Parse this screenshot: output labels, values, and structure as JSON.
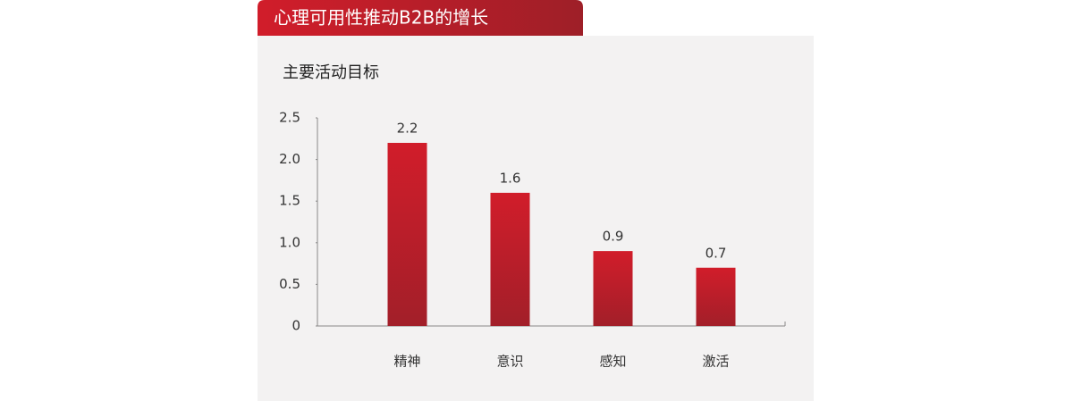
{
  "chart_data": {
    "type": "bar",
    "title": "心理可用性推动B2B的增长",
    "subtitle": "主要活动目标",
    "categories": [
      "精神",
      "意识",
      "感知",
      "激活"
    ],
    "values": [
      2.2,
      1.6,
      0.9,
      0.7
    ],
    "color": "#d11d2a",
    "ylim": [
      0,
      2.5
    ],
    "yticks": [
      0,
      0.5,
      {
        "value": 1,
        "label": "1.0"
      },
      1.5,
      {
        "value": 2,
        "label": "2.0"
      },
      2.5
    ],
    "grid": false
  }
}
